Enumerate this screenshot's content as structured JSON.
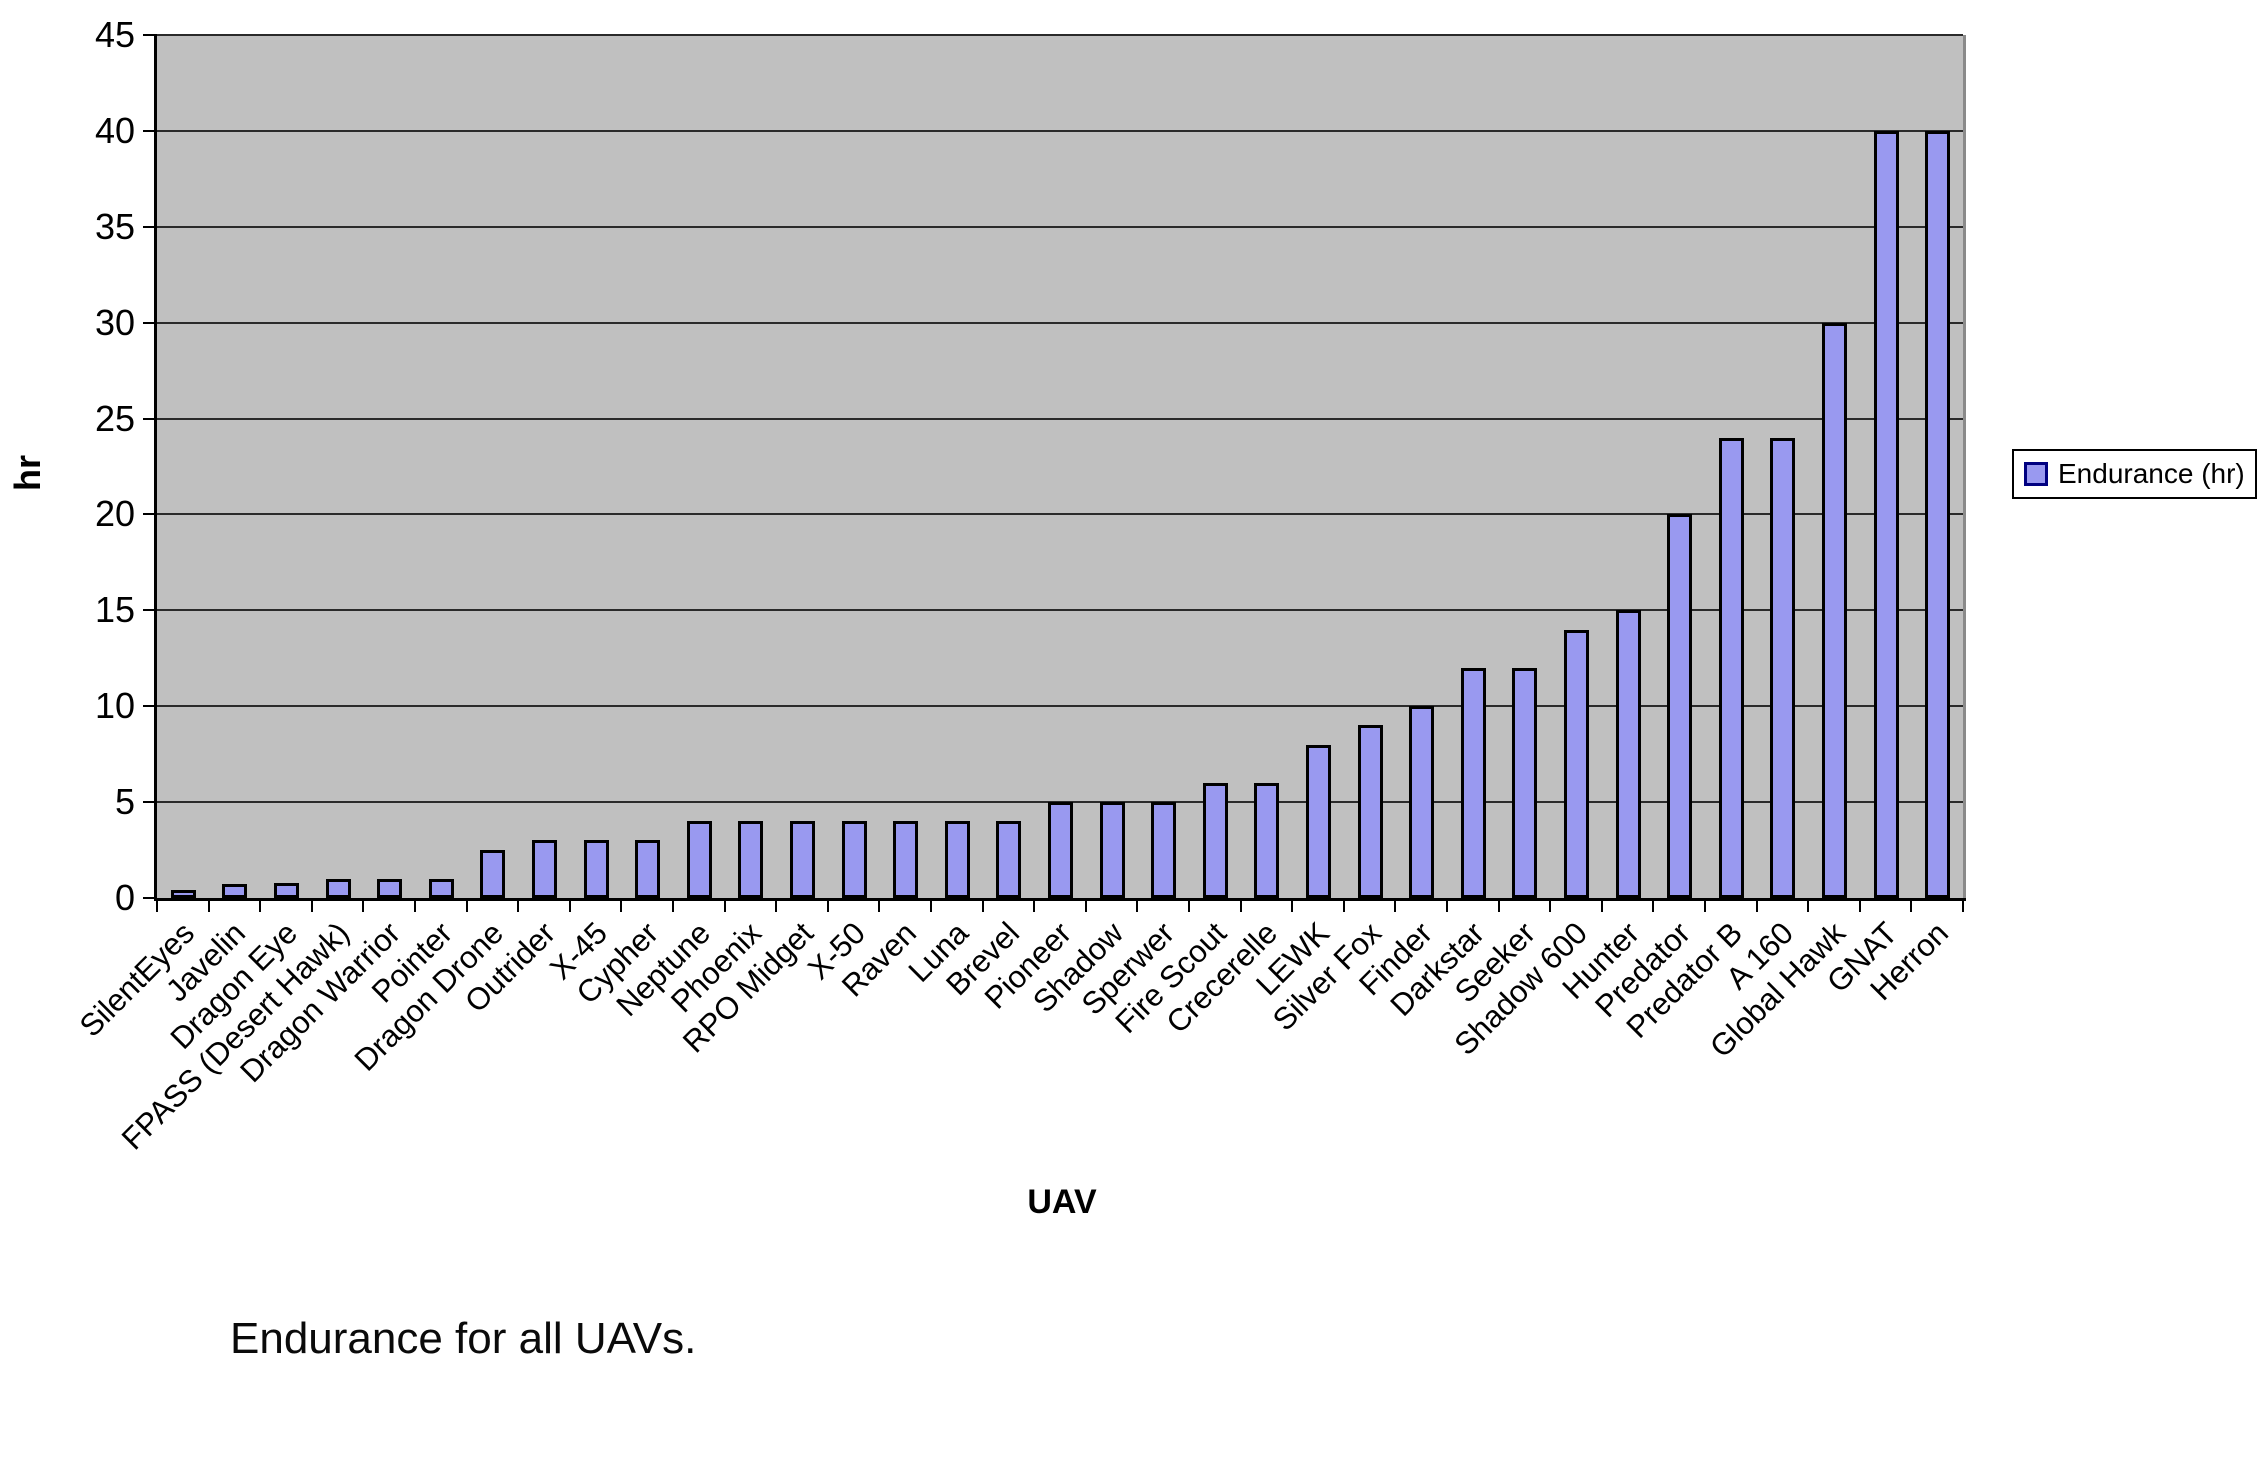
{
  "caption": "Endurance for all UAVs.",
  "chart_data": {
    "type": "bar",
    "title": "",
    "xlabel": "UAV",
    "ylabel": "hr",
    "ylim": [
      0,
      45
    ],
    "y_ticks": [
      0,
      5,
      10,
      15,
      20,
      25,
      30,
      35,
      40,
      45
    ],
    "grid": "horizontal",
    "legend_position": "right",
    "categories": [
      "SilentEyes",
      "Javelin",
      "Dragon Eye",
      "FPASS (Desert Hawk)",
      "Dragon Warrior",
      "Pointer",
      "Dragon Drone",
      "Outrider",
      "X-45",
      "Cypher",
      "Neptune",
      "Phoenix",
      "RPO Midget",
      "X-50",
      "Raven",
      "Luna",
      "Brevel",
      "Pioneer",
      "Shadow",
      "Sperwer",
      "Fire Scout",
      "Crecerelle",
      "LEWK",
      "Silver Fox",
      "Finder",
      "Darkstar",
      "Seeker",
      "Shadow 600",
      "Hunter",
      "Predator",
      "Predator B",
      "A 160",
      "Global Hawk",
      "GNAT",
      "Herron"
    ],
    "series": [
      {
        "name": "Endurance (hr)",
        "values": [
          0.4,
          0.75,
          0.8,
          1,
          1,
          1,
          2.5,
          3,
          3,
          3,
          4,
          4,
          4,
          4,
          4,
          4,
          4,
          5,
          5,
          5,
          6,
          6,
          8,
          9,
          10,
          12,
          12,
          14,
          15,
          20,
          24,
          24,
          30,
          40,
          40
        ]
      }
    ],
    "colors": {
      "plot_bg": "#c0c0c0",
      "bar_fill": "#9999f0",
      "bar_border": "#000000",
      "gridline": "#2a2a2a",
      "axis": "#000000",
      "legend_swatch_border": "#000080"
    }
  }
}
